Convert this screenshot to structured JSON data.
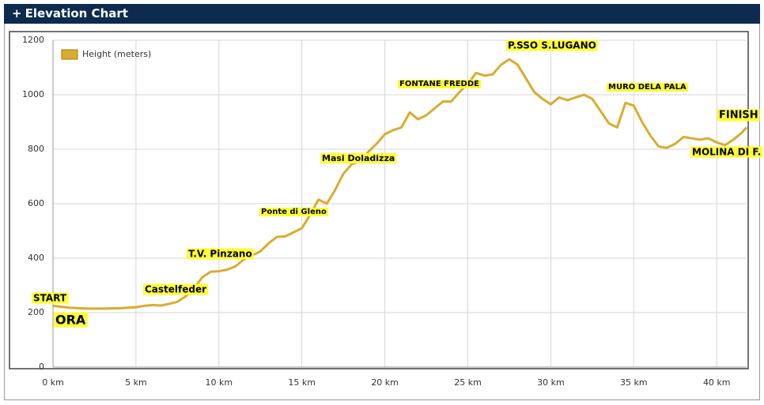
{
  "header": {
    "title": "Elevation Chart"
  },
  "chart_data": {
    "type": "line",
    "x": [
      0,
      1,
      2,
      3,
      4,
      5,
      5.5,
      6,
      6.5,
      7,
      7.5,
      8,
      8.5,
      9,
      9.5,
      10,
      10.5,
      11,
      11.5,
      12,
      12.5,
      13,
      13.5,
      14,
      14.5,
      15,
      15.5,
      16,
      16.5,
      17,
      17.5,
      18,
      18.5,
      19,
      19.5,
      20,
      20.5,
      21,
      21.5,
      22,
      22.5,
      23,
      23.5,
      24,
      24.5,
      25,
      25.5,
      26,
      26.5,
      27,
      27.5,
      28,
      28.5,
      29,
      29.5,
      30,
      30.5,
      31,
      31.5,
      32,
      32.5,
      33,
      33.5,
      34,
      34.5,
      35,
      35.5,
      36,
      36.5,
      37,
      37.5,
      38,
      38.5,
      39,
      39.5,
      40,
      40.5,
      41,
      41.5,
      41.8
    ],
    "series": [
      {
        "name": "Height (meters)",
        "color": "#d9ac2e",
        "values": [
          225,
          218,
          215,
          215,
          216,
          220,
          225,
          228,
          226,
          232,
          240,
          260,
          290,
          330,
          350,
          352,
          358,
          370,
          395,
          410,
          425,
          455,
          478,
          480,
          495,
          510,
          560,
          615,
          600,
          650,
          710,
          745,
          755,
          790,
          820,
          855,
          870,
          880,
          935,
          910,
          925,
          950,
          975,
          975,
          1010,
          1040,
          1080,
          1070,
          1075,
          1110,
          1130,
          1110,
          1060,
          1010,
          985,
          965,
          990,
          980,
          990,
          1000,
          985,
          940,
          895,
          880,
          970,
          960,
          900,
          850,
          810,
          805,
          820,
          845,
          840,
          835,
          840,
          825,
          815,
          835,
          860,
          880
        ]
      }
    ],
    "xlim": [
      0,
      41.8
    ],
    "xticks": [
      {
        "value": 0,
        "label": "0 km"
      },
      {
        "value": 5,
        "label": "5 km"
      },
      {
        "value": 10,
        "label": "10 km"
      },
      {
        "value": 15,
        "label": "15 km"
      },
      {
        "value": 20,
        "label": "20 km"
      },
      {
        "value": 25,
        "label": "25 km"
      },
      {
        "value": 30,
        "label": "30 km"
      },
      {
        "value": 35,
        "label": "35 km"
      },
      {
        "value": 40,
        "label": "40 km"
      }
    ],
    "ylim": [
      0,
      1200
    ],
    "yticks": [
      0,
      200,
      400,
      600,
      800,
      1000,
      1200
    ],
    "grid": true,
    "legend": "top-left",
    "annotations": [
      "START",
      "ORA",
      "Castelfeder",
      "T.V. Pinzano",
      "Ponte di Gleno",
      "Masi Doladizza",
      "FONTANE FREDDE",
      "P.SSO S.LUGANO",
      "MURO DELA PALA",
      "FINISH",
      "MOLINA DI F."
    ]
  }
}
